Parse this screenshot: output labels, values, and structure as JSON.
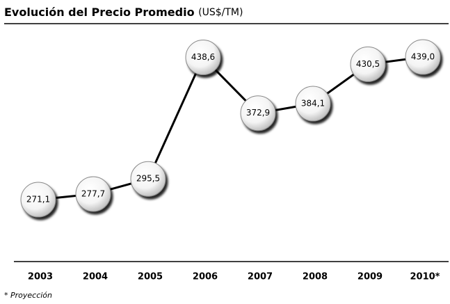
{
  "chart_data": {
    "type": "line",
    "title": "Evolución del Precio Promedio",
    "subtitle": "(US$/TM)",
    "categories": [
      "2003",
      "2004",
      "2005",
      "2006",
      "2007",
      "2008",
      "2009",
      "2010*"
    ],
    "values": [
      271.1,
      277.7,
      295.5,
      438.6,
      372.9,
      384.1,
      430.5,
      439.0
    ],
    "value_labels": [
      "271,1",
      "277,7",
      "295,5",
      "438,6",
      "372,9",
      "384,1",
      "430,5",
      "439,0"
    ],
    "color": "#000000",
    "footnote": "* Proyección"
  }
}
